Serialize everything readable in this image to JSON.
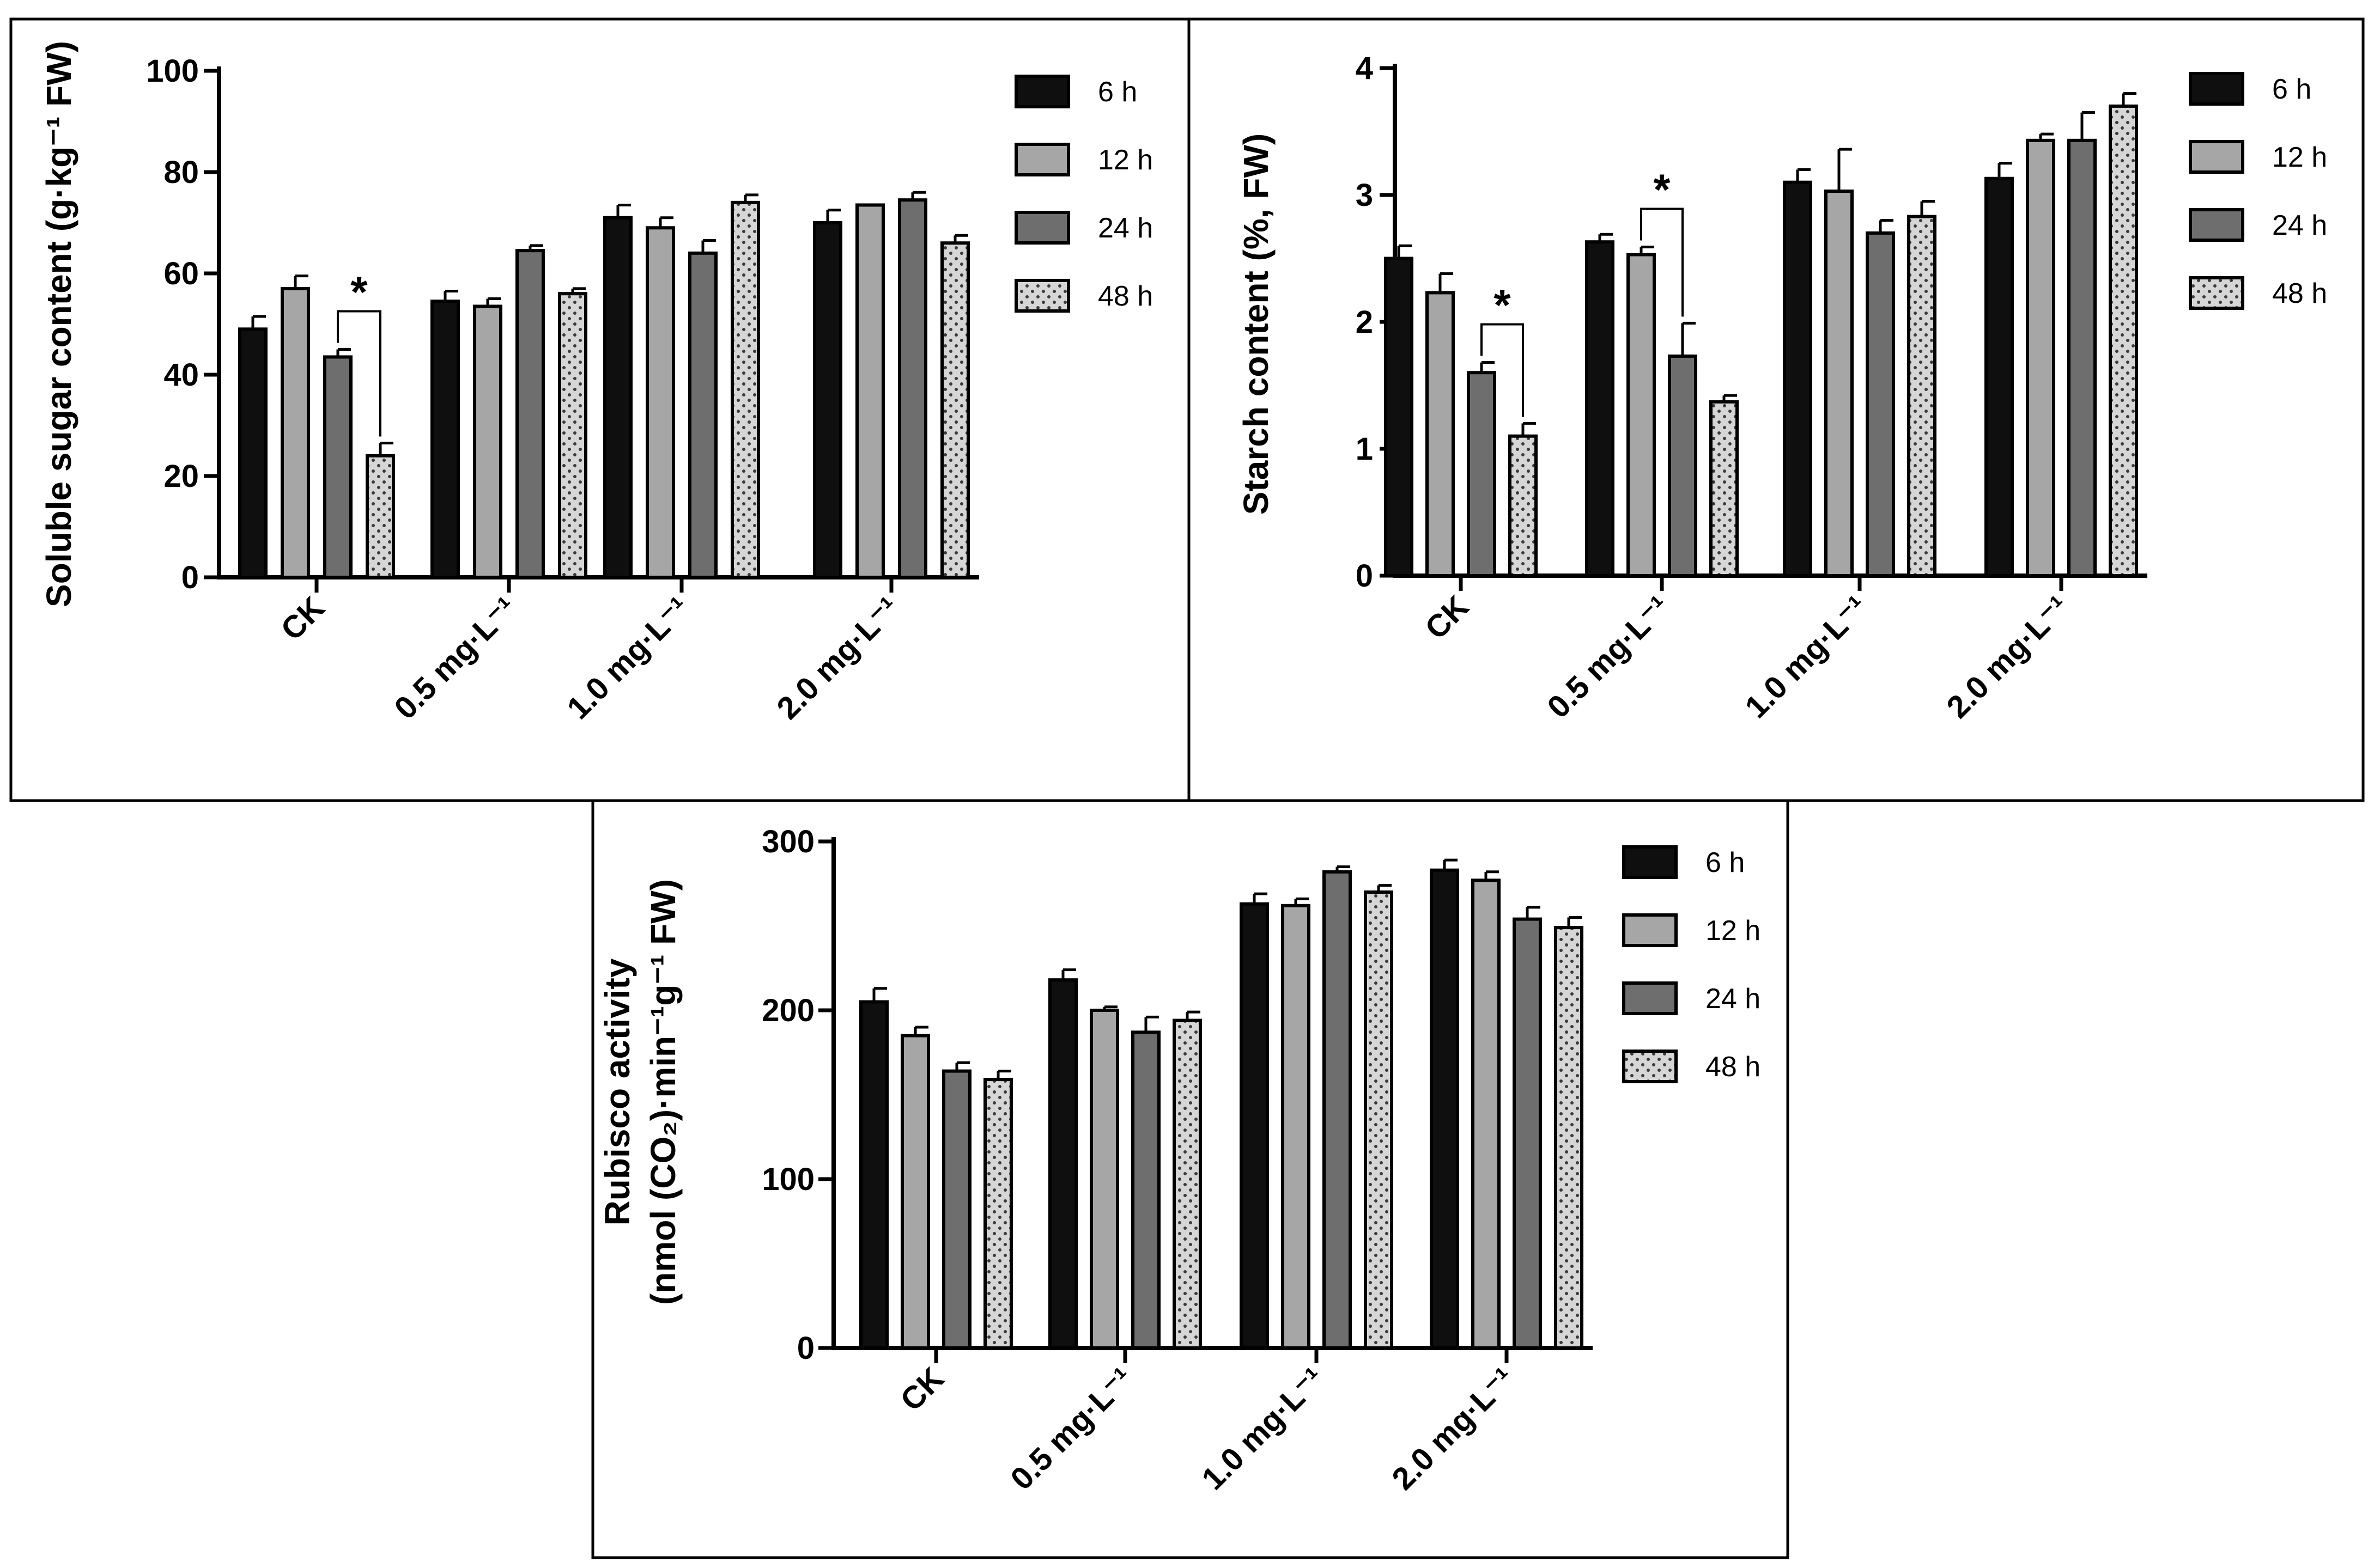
{
  "palette": {
    "6 h": "#0f0f0f",
    "12 h": "#a6a6a6",
    "24 h": "#6e6e6e",
    "48 h": "#d6d6d6"
  },
  "chart_data": [
    {
      "id": "sugar",
      "type": "bar",
      "categories": [
        "CK",
        "0.5 mg·L⁻¹",
        "1.0 mg·L⁻¹",
        "2.0 mg·L⁻¹"
      ],
      "series": [
        {
          "name": "6 h",
          "values": [
            49,
            54.5,
            71,
            70
          ],
          "errors": [
            2.5,
            2,
            2.5,
            2.5
          ]
        },
        {
          "name": "12 h",
          "values": [
            57,
            53.5,
            69,
            73.5
          ],
          "errors": [
            2.5,
            1.5,
            2,
            0
          ]
        },
        {
          "name": "24 h",
          "values": [
            43.5,
            64.5,
            64,
            74.5
          ],
          "errors": [
            1.5,
            1,
            2.5,
            1.5
          ]
        },
        {
          "name": "48 h",
          "values": [
            24,
            56,
            74,
            66
          ],
          "errors": [
            2.5,
            1,
            1.5,
            1.5
          ]
        }
      ],
      "ylabel": "Soluble sugar content (g·kg⁻¹ FW)",
      "ylim": [
        0,
        100
      ],
      "yticks": [
        "0",
        "20",
        "40",
        "60",
        "80",
        "100"
      ],
      "legend": [
        "6 h",
        "12 h",
        "24 h",
        "48 h"
      ],
      "annotations": [
        {
          "text": "*",
          "category": 0,
          "from": "24 h",
          "to": "48 h"
        }
      ]
    },
    {
      "id": "starch",
      "type": "bar",
      "categories": [
        "CK",
        "0.5 mg·L⁻¹",
        "1.0 mg·L⁻¹",
        "2.0 mg·L⁻¹"
      ],
      "series": [
        {
          "name": "6 h",
          "values": [
            2.5,
            2.63,
            3.1,
            3.13
          ],
          "errors": [
            0.1,
            0.06,
            0.1,
            0.12
          ]
        },
        {
          "name": "12 h",
          "values": [
            2.23,
            2.53,
            3.03,
            3.43
          ],
          "errors": [
            0.15,
            0.06,
            0.33,
            0.05
          ]
        },
        {
          "name": "24 h",
          "values": [
            1.6,
            1.73,
            2.7,
            3.43
          ],
          "errors": [
            0.08,
            0.26,
            0.1,
            0.22
          ]
        },
        {
          "name": "48 h",
          "values": [
            1.1,
            1.37,
            2.83,
            3.7
          ],
          "errors": [
            0.1,
            0.05,
            0.12,
            0.1
          ]
        }
      ],
      "ylabel": "Starch content (%, FW)",
      "ylim": [
        0,
        4
      ],
      "yticks": [
        "0",
        "1",
        "2",
        "3",
        "4"
      ],
      "legend": [
        "6 h",
        "12 h",
        "24 h",
        "48 h"
      ],
      "annotations": [
        {
          "text": "*",
          "category": 0,
          "from": "24 h",
          "to": "48 h"
        },
        {
          "text": "*",
          "category": 1,
          "from": "12 h",
          "to": "24 h"
        }
      ]
    },
    {
      "id": "rubisco",
      "type": "bar",
      "categories": [
        "CK",
        "0.5 mg·L⁻¹",
        "1.0 mg·L⁻¹",
        "2.0 mg·L⁻¹"
      ],
      "series": [
        {
          "name": "6 h",
          "values": [
            205,
            218,
            263,
            283
          ],
          "errors": [
            8,
            6,
            6,
            6
          ]
        },
        {
          "name": "12 h",
          "values": [
            185,
            200,
            262,
            277
          ],
          "errors": [
            5,
            2,
            4,
            5
          ]
        },
        {
          "name": "24 h",
          "values": [
            164,
            187,
            282,
            254
          ],
          "errors": [
            5,
            9,
            3,
            7
          ]
        },
        {
          "name": "48 h",
          "values": [
            159,
            194,
            270,
            249
          ],
          "errors": [
            5,
            5,
            4,
            6
          ]
        }
      ],
      "ylabel": [
        "Rubisco activity",
        "(nmol (CO₂)·min⁻¹g⁻¹ FW)"
      ],
      "ylim": [
        0,
        300
      ],
      "yticks": [
        "0",
        "100",
        "200",
        "300"
      ],
      "legend": [
        "6 h",
        "12 h",
        "24 h",
        "48 h"
      ],
      "annotations": []
    }
  ]
}
